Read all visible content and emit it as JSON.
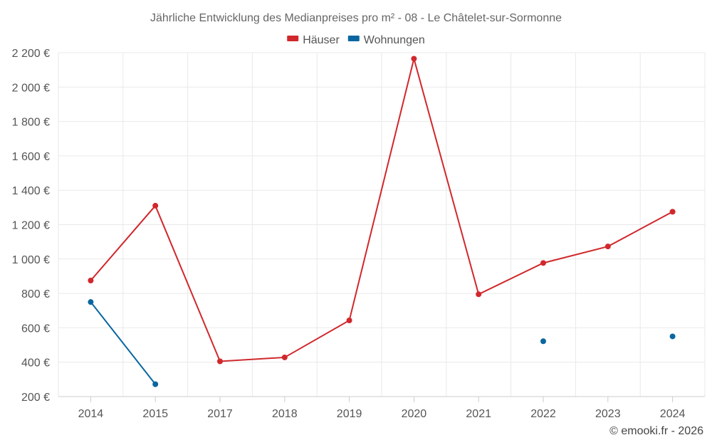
{
  "chart_data": {
    "type": "line",
    "title": "Jährliche Entwicklung des Medianpreises pro m² - 08 - Le Châtelet-sur-Sormonne",
    "categories": [
      "2014",
      "2015",
      "2017",
      "2018",
      "2019",
      "2020",
      "2021",
      "2022",
      "2023",
      "2024"
    ],
    "series": [
      {
        "name": "Häuser",
        "color": "#d0282c",
        "values": [
          875,
          1310,
          405,
          428,
          643,
          2165,
          795,
          977,
          1073,
          1275
        ]
      },
      {
        "name": "Wohnungen",
        "color": "#0a66a0",
        "values": [
          750,
          272,
          null,
          null,
          null,
          null,
          null,
          522,
          null,
          550
        ]
      }
    ],
    "ylim": [
      200,
      2200
    ],
    "yticks": [
      200,
      400,
      600,
      800,
      1000,
      1200,
      1400,
      1600,
      1800,
      2000,
      2200
    ],
    "ytick_labels": [
      "200 €",
      "400 €",
      "600 €",
      "800 €",
      "1 000 €",
      "1 200 €",
      "1 400 €",
      "1 600 €",
      "1 800 €",
      "2 000 €",
      "2 200 €"
    ],
    "grid": true,
    "legend_position": "top-center"
  },
  "credit": "© emooki.fr - 2026"
}
